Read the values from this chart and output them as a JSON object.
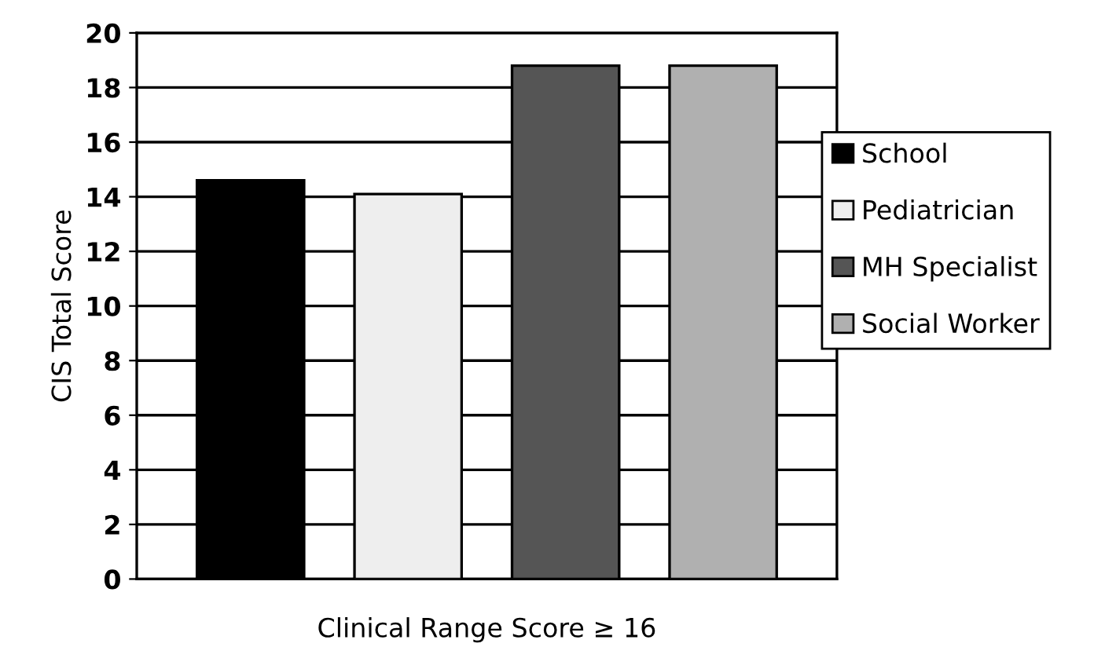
{
  "chart_data": {
    "type": "bar",
    "xlabel": "Clinical Range Score ≥ 16",
    "ylabel": "CIS Total Score",
    "categories": [
      null
    ],
    "series": [
      {
        "name": "School",
        "color": "#000000",
        "values": [
          14.6
        ]
      },
      {
        "name": "Pediatrician",
        "color": "#eeeeee",
        "values": [
          14.1
        ]
      },
      {
        "name": "MH Specialist",
        "color": "#555555",
        "values": [
          18.8
        ]
      },
      {
        "name": "Social Worker",
        "color": "#b0b0b0",
        "values": [
          18.8
        ]
      }
    ],
    "ylim": [
      0,
      20
    ],
    "yticks": [
      0,
      2,
      4,
      6,
      8,
      10,
      12,
      14,
      16,
      18,
      20
    ],
    "grid": "y",
    "legend": "right"
  }
}
